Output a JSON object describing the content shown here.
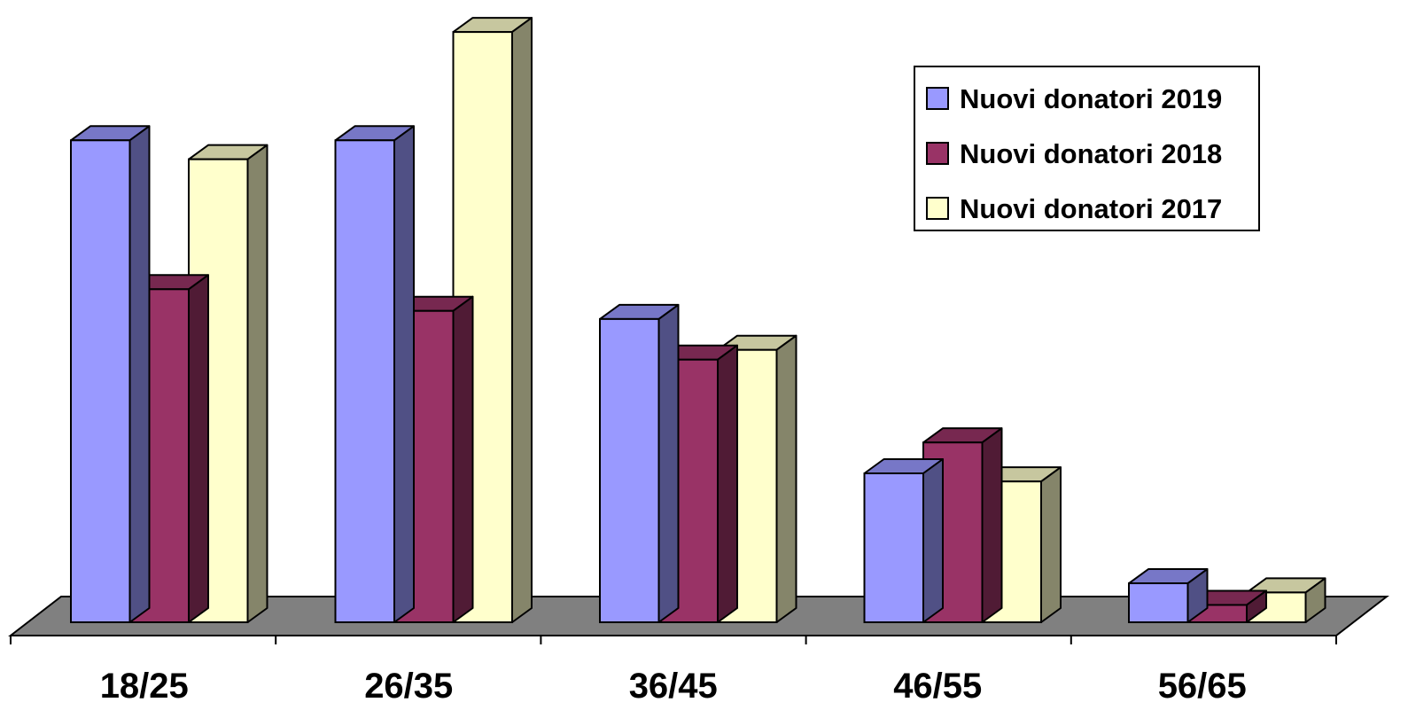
{
  "chart_data": {
    "type": "bar",
    "style": "3d-clustered-column",
    "categories": [
      "18/25",
      "26/35",
      "36/45",
      "46/55",
      "56/65"
    ],
    "series": [
      {
        "name": "Nuovi donatori 2019",
        "values": [
          89,
          89,
          56,
          27.5,
          7.2
        ],
        "color": "#9999ff"
      },
      {
        "name": "Nuovi donatori 2018",
        "values": [
          61.5,
          57.5,
          48.5,
          33.2,
          3.2
        ],
        "color": "#993366"
      },
      {
        "name": "Nuovi donatori 2017",
        "values": [
          85.5,
          109,
          50.3,
          26,
          5.5
        ],
        "color": "#ffffcc"
      }
    ],
    "ylim": [
      0,
      110
    ],
    "grid": false,
    "floor_color": "#808080",
    "legend": "top-right"
  }
}
